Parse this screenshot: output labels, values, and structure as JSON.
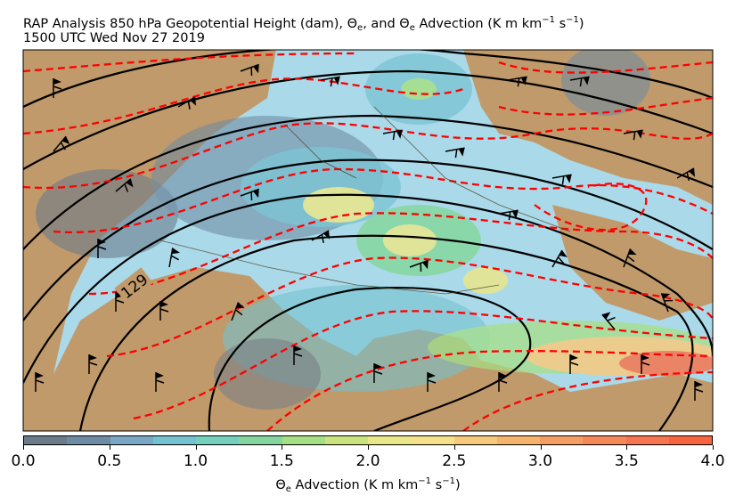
{
  "title": {
    "line1_prefix": "RAP Analysis 850 hPa Geopotential Height (dam), ",
    "theta_symbol": "Θ",
    "sub_e": "e",
    "line1_mid": ", and ",
    "line1_mid2": " Advection (K m km",
    "exp_1": "−1",
    "line1_mid3": " s",
    "line1_suffix": ")",
    "line2": "1500 UTC Wed Nov 27 2019"
  },
  "map": {
    "contour_label": "129",
    "ocean_color": "#aadaea",
    "land_color": "#c19a6b",
    "height_contour_color": "#000000",
    "theta_e_contour_color": "#ff0000",
    "wind_barb_color": "#000000"
  },
  "colorbar": {
    "ticks": [
      "0.0",
      "0.5",
      "1.0",
      "1.5",
      "2.0",
      "2.5",
      "3.0",
      "3.5",
      "4.0"
    ],
    "label_symbol": "Θ",
    "label_sub": "e",
    "label_text": " Advection (K m km",
    "label_exp1": "−1",
    "label_text2": " s",
    "label_exp2": "−1",
    "label_end": ")",
    "colors": [
      "#6b7b8a",
      "#6f8aa3",
      "#7aa8c4",
      "#74c1cf",
      "#74cfbd",
      "#85d69e",
      "#a6de84",
      "#cbe37f",
      "#eae68a",
      "#f5e08b",
      "#f7c97c",
      "#f6b36e",
      "#f59e64",
      "#f58758",
      "#f6744f",
      "#f7643f"
    ]
  }
}
